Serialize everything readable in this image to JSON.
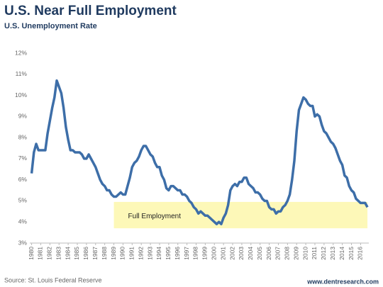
{
  "chart_data": {
    "type": "line",
    "title": "U.S. Near Full Employment",
    "subtitle": "U.S. Unemployment Rate",
    "source": "Source: St. Louis Federal Reserve",
    "website": "www.dentresearch.com",
    "annotation": {
      "text": "Full Employment",
      "x": [
        1989,
        2016.75
      ],
      "y": [
        3.7,
        4.95
      ],
      "color": "#fdf8b8"
    },
    "x": [
      1980,
      1980.25,
      1980.5,
      1980.75,
      1981,
      1981.25,
      1981.5,
      1981.75,
      1982,
      1982.25,
      1982.5,
      1982.75,
      1983,
      1983.25,
      1983.5,
      1983.75,
      1984,
      1984.25,
      1984.5,
      1984.75,
      1985,
      1985.25,
      1985.5,
      1985.75,
      1986,
      1986.25,
      1986.5,
      1986.75,
      1987,
      1987.25,
      1987.5,
      1987.75,
      1988,
      1988.25,
      1988.5,
      1988.75,
      1989,
      1989.25,
      1989.5,
      1989.75,
      1990,
      1990.25,
      1990.5,
      1990.75,
      1991,
      1991.25,
      1991.5,
      1991.75,
      1992,
      1992.25,
      1992.5,
      1992.75,
      1993,
      1993.25,
      1993.5,
      1993.75,
      1994,
      1994.25,
      1994.5,
      1994.75,
      1995,
      1995.25,
      1995.5,
      1995.75,
      1996,
      1996.25,
      1996.5,
      1996.75,
      1997,
      1997.25,
      1997.5,
      1997.75,
      1998,
      1998.25,
      1998.5,
      1998.75,
      1999,
      1999.25,
      1999.5,
      1999.75,
      2000,
      2000.25,
      2000.5,
      2000.75,
      2001,
      2001.25,
      2001.5,
      2001.75,
      2002,
      2002.25,
      2002.5,
      2002.75,
      2003,
      2003.25,
      2003.5,
      2003.75,
      2004,
      2004.25,
      2004.5,
      2004.75,
      2005,
      2005.25,
      2005.5,
      2005.75,
      2006,
      2006.25,
      2006.5,
      2006.75,
      2007,
      2007.25,
      2007.5,
      2007.75,
      2008,
      2008.25,
      2008.5,
      2008.75,
      2009,
      2009.25,
      2009.5,
      2009.75,
      2010,
      2010.25,
      2010.5,
      2010.75,
      2011,
      2011.25,
      2011.5,
      2011.75,
      2012,
      2012.25,
      2012.5,
      2012.75,
      2013,
      2013.25,
      2013.5,
      2013.75,
      2014,
      2014.25,
      2014.5,
      2014.75,
      2015,
      2015.25,
      2015.5,
      2015.75,
      2016,
      2016.25,
      2016.5,
      2016.75
    ],
    "series": [
      {
        "name": "U.S. Unemployment Rate",
        "color": "#3d6ea8",
        "values": [
          6.3,
          7.3,
          7.7,
          7.4,
          7.4,
          7.4,
          7.4,
          8.2,
          8.8,
          9.4,
          9.9,
          10.7,
          10.4,
          10.1,
          9.4,
          8.5,
          7.9,
          7.4,
          7.4,
          7.3,
          7.3,
          7.3,
          7.2,
          7.0,
          7.0,
          7.2,
          7.0,
          6.8,
          6.6,
          6.3,
          6.0,
          5.8,
          5.7,
          5.5,
          5.5,
          5.3,
          5.2,
          5.2,
          5.3,
          5.4,
          5.3,
          5.3,
          5.7,
          6.1,
          6.6,
          6.8,
          6.9,
          7.1,
          7.4,
          7.6,
          7.6,
          7.4,
          7.2,
          7.1,
          6.8,
          6.6,
          6.6,
          6.2,
          6.0,
          5.6,
          5.5,
          5.7,
          5.7,
          5.6,
          5.5,
          5.5,
          5.3,
          5.3,
          5.2,
          5.0,
          4.9,
          4.7,
          4.6,
          4.4,
          4.5,
          4.4,
          4.3,
          4.3,
          4.2,
          4.1,
          4.0,
          3.9,
          4.0,
          3.9,
          4.2,
          4.4,
          4.8,
          5.5,
          5.7,
          5.8,
          5.7,
          5.9,
          5.9,
          6.1,
          6.1,
          5.8,
          5.7,
          5.6,
          5.4,
          5.4,
          5.3,
          5.1,
          5.0,
          5.0,
          4.7,
          4.6,
          4.6,
          4.4,
          4.5,
          4.5,
          4.7,
          4.8,
          5.0,
          5.3,
          6.0,
          6.9,
          8.3,
          9.3,
          9.6,
          9.9,
          9.8,
          9.6,
          9.5,
          9.5,
          9.0,
          9.1,
          9.0,
          8.6,
          8.3,
          8.2,
          8.0,
          7.8,
          7.7,
          7.5,
          7.2,
          6.9,
          6.7,
          6.2,
          6.1,
          5.7,
          5.5,
          5.4,
          5.1,
          5.0,
          4.9,
          4.9,
          4.9,
          4.7
        ]
      }
    ],
    "xlim": [
      1979.8,
      2016.9
    ],
    "xticks": [
      1980,
      1981,
      1982,
      1983,
      1984,
      1985,
      1986,
      1987,
      1988,
      1989,
      1990,
      1991,
      1992,
      1993,
      1994,
      1995,
      1996,
      1997,
      1998,
      1999,
      2000,
      2001,
      2002,
      2003,
      2004,
      2005,
      2006,
      2007,
      2008,
      2009,
      2010,
      2011,
      2012,
      2013,
      2014,
      2015,
      2016
    ],
    "ylim": [
      3,
      12
    ],
    "yticks": [
      {
        "value": 3,
        "label": "3%"
      },
      {
        "value": 4,
        "label": "4%"
      },
      {
        "value": 5,
        "label": "5%"
      },
      {
        "value": 6,
        "label": "6%"
      },
      {
        "value": 7,
        "label": "7%"
      },
      {
        "value": 8,
        "label": "8%"
      },
      {
        "value": 9,
        "label": "9%"
      },
      {
        "value": 10,
        "label": "10%"
      },
      {
        "value": 11,
        "label": "11%"
      },
      {
        "value": 12,
        "label": "12%"
      }
    ],
    "grid": false
  }
}
